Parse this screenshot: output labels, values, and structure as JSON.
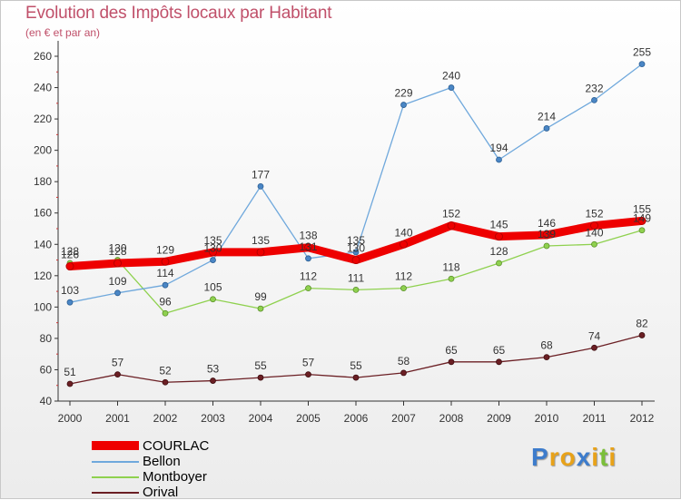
{
  "chart_data": {
    "type": "line",
    "title": "Evolution des Impôts locaux par Habitant",
    "subtitle": "(en € et par an)",
    "xlabel": "",
    "ylabel": "",
    "x": [
      "2000",
      "2001",
      "2002",
      "2003",
      "2004",
      "2005",
      "2006",
      "2007",
      "2008",
      "2009",
      "2010",
      "2011",
      "2012"
    ],
    "ylim": [
      40,
      260
    ],
    "yticks": [
      40,
      60,
      80,
      100,
      120,
      140,
      160,
      180,
      200,
      220,
      240,
      260
    ],
    "grid": false,
    "legend_position": "bottom-left",
    "series": [
      {
        "name": "COURLAC",
        "color": "#ee0000",
        "values": [
          126,
          128,
          129,
          135,
          135,
          138,
          130,
          140,
          152,
          145,
          146,
          152,
          155
        ]
      },
      {
        "name": "Bellon",
        "color": "#6fa8dc",
        "values": [
          103,
          109,
          114,
          130,
          177,
          131,
          135,
          229,
          240,
          194,
          214,
          232,
          255
        ]
      },
      {
        "name": "Montboyer",
        "color": "#8fd14f",
        "values": [
          128,
          130,
          96,
          105,
          99,
          112,
          111,
          112,
          118,
          128,
          139,
          140,
          149
        ]
      },
      {
        "name": "Orival",
        "color": "#6b1f24",
        "values": [
          51,
          57,
          52,
          53,
          55,
          57,
          55,
          58,
          65,
          65,
          68,
          74,
          82
        ]
      }
    ]
  },
  "legend": {
    "items": [
      {
        "label": "COURLAC",
        "color": "#ee0000"
      },
      {
        "label": "Bellon",
        "color": "#6fa8dc"
      },
      {
        "label": "Montboyer",
        "color": "#8fd14f"
      },
      {
        "label": "Orival",
        "color": "#6b1f24"
      }
    ]
  },
  "logo": {
    "letters": [
      "P",
      "r",
      "o",
      "x",
      "i",
      "t",
      "i"
    ],
    "colors": [
      "#3d7ccc",
      "#e8a219",
      "#e8a219",
      "#3d7ccc",
      "#e8a219",
      "#7bbf3a",
      "#e8a219"
    ]
  }
}
